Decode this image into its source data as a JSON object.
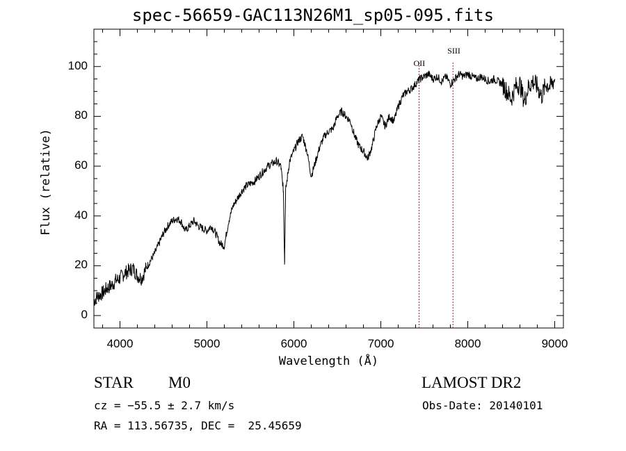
{
  "chart_data": {
    "type": "line",
    "title": "spec-56659-GAC113N26M1_sp05-095.fits",
    "xlabel": "Wavelength (Å)",
    "ylabel": "Flux (relative)",
    "xlim": [
      3700,
      9100
    ],
    "ylim": [
      -5,
      115
    ],
    "xticks": [
      "4000",
      "5000",
      "6000",
      "7000",
      "8000",
      "9000"
    ],
    "yticks": [
      "0",
      "20",
      "40",
      "60",
      "80",
      "100"
    ],
    "grid": false,
    "series": [
      {
        "color": "#000000",
        "points": [
          [
            3700,
            6
          ],
          [
            3750,
            8
          ],
          [
            3800,
            9
          ],
          [
            3850,
            11
          ],
          [
            3900,
            12
          ],
          [
            3950,
            14
          ],
          [
            4000,
            15
          ],
          [
            4050,
            17
          ],
          [
            4100,
            18
          ],
          [
            4150,
            19
          ],
          [
            4200,
            16
          ],
          [
            4250,
            15
          ],
          [
            4300,
            19
          ],
          [
            4350,
            22
          ],
          [
            4400,
            25
          ],
          [
            4450,
            29
          ],
          [
            4500,
            33
          ],
          [
            4550,
            36
          ],
          [
            4600,
            38
          ],
          [
            4650,
            39
          ],
          [
            4700,
            38
          ],
          [
            4750,
            34
          ],
          [
            4800,
            36
          ],
          [
            4850,
            38
          ],
          [
            4900,
            36
          ],
          [
            4950,
            35
          ],
          [
            5000,
            34
          ],
          [
            5050,
            36
          ],
          [
            5100,
            33
          ],
          [
            5150,
            29
          ],
          [
            5200,
            28
          ],
          [
            5250,
            38
          ],
          [
            5300,
            44
          ],
          [
            5350,
            47
          ],
          [
            5400,
            50
          ],
          [
            5450,
            52
          ],
          [
            5500,
            53
          ],
          [
            5550,
            54
          ],
          [
            5600,
            56
          ],
          [
            5650,
            58
          ],
          [
            5700,
            60
          ],
          [
            5750,
            61
          ],
          [
            5800,
            62
          ],
          [
            5850,
            60
          ],
          [
            5880,
            50
          ],
          [
            5893,
            21
          ],
          [
            5905,
            50
          ],
          [
            5950,
            62
          ],
          [
            6000,
            66
          ],
          [
            6050,
            70
          ],
          [
            6100,
            72
          ],
          [
            6150,
            66
          ],
          [
            6200,
            56
          ],
          [
            6250,
            62
          ],
          [
            6300,
            68
          ],
          [
            6350,
            72
          ],
          [
            6400,
            74
          ],
          [
            6450,
            75
          ],
          [
            6500,
            80
          ],
          [
            6550,
            82
          ],
          [
            6600,
            80
          ],
          [
            6650,
            78
          ],
          [
            6700,
            72
          ],
          [
            6750,
            68
          ],
          [
            6800,
            66
          ],
          [
            6850,
            63
          ],
          [
            6900,
            68
          ],
          [
            6950,
            76
          ],
          [
            7000,
            80
          ],
          [
            7050,
            76
          ],
          [
            7100,
            80
          ],
          [
            7150,
            78
          ],
          [
            7200,
            84
          ],
          [
            7250,
            88
          ],
          [
            7300,
            90
          ],
          [
            7350,
            91
          ],
          [
            7400,
            93
          ],
          [
            7450,
            95
          ],
          [
            7500,
            96
          ],
          [
            7550,
            97
          ],
          [
            7600,
            95
          ],
          [
            7650,
            96
          ],
          [
            7700,
            94
          ],
          [
            7750,
            96
          ],
          [
            7800,
            93
          ],
          [
            7850,
            95
          ],
          [
            7900,
            97
          ],
          [
            7950,
            96
          ],
          [
            8000,
            97
          ],
          [
            8050,
            96
          ],
          [
            8100,
            95
          ],
          [
            8150,
            96
          ],
          [
            8200,
            95
          ],
          [
            8250,
            94
          ],
          [
            8300,
            95
          ],
          [
            8350,
            94
          ],
          [
            8400,
            93
          ],
          [
            8450,
            90
          ],
          [
            8500,
            87
          ],
          [
            8550,
            92
          ],
          [
            8600,
            93
          ],
          [
            8650,
            86
          ],
          [
            8700,
            92
          ],
          [
            8750,
            94
          ],
          [
            8800,
            92
          ],
          [
            8850,
            88
          ],
          [
            8900,
            93
          ],
          [
            8950,
            92
          ],
          [
            9000,
            95
          ]
        ]
      }
    ],
    "lines": [
      {
        "label": "OII",
        "x": 7440,
        "color": "#b22222"
      },
      {
        "label": "SIII",
        "x": 7830,
        "color": "#b22222"
      }
    ]
  },
  "info": {
    "object_class": "STAR",
    "subclass": "M0",
    "cz": "cz = −55.5 ± 2.7 km/s",
    "coords": "RA = 113.56735, DEC =  25.45659",
    "survey": "LAMOST DR2",
    "obs_date": "Obs-Date: 20140101"
  }
}
